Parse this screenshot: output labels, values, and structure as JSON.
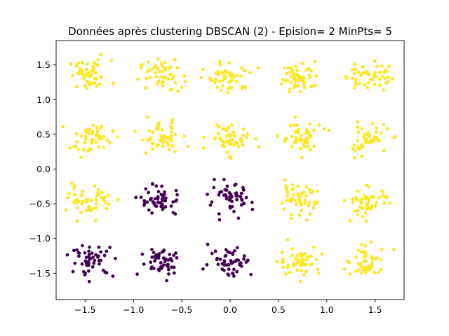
{
  "chart_data": {
    "type": "scatter",
    "title": "Données après clustering DBSCAN (2) - Epislon= 2 MinPts= 5",
    "xlabel": "",
    "ylabel": "",
    "xlim": [
      -1.8,
      1.8
    ],
    "ylim": [
      -1.88,
      1.85
    ],
    "grid": false,
    "x_ticks": [
      {
        "value": -1.5,
        "label": "−1.5"
      },
      {
        "value": -1.0,
        "label": "−1.0"
      },
      {
        "value": -0.5,
        "label": "−0.5"
      },
      {
        "value": 0.0,
        "label": "0.0"
      },
      {
        "value": 0.5,
        "label": "0.5"
      },
      {
        "value": 1.0,
        "label": "1.0"
      },
      {
        "value": 1.5,
        "label": "1.5"
      }
    ],
    "y_ticks": [
      {
        "value": -1.5,
        "label": "−1.5"
      },
      {
        "value": -1.0,
        "label": "−1.0"
      },
      {
        "value": -0.5,
        "label": "−0.5"
      },
      {
        "value": 0.0,
        "label": "0.0"
      },
      {
        "value": 0.5,
        "label": "0.5"
      },
      {
        "value": 1.0,
        "label": "1.0"
      },
      {
        "value": 1.5,
        "label": "1.5"
      }
    ],
    "colors": {
      "cluster_0": "#440154",
      "cluster_1": "#fde725"
    },
    "clusters": [
      {
        "cx": -1.45,
        "cy": 1.35,
        "cluster": 1
      },
      {
        "cx": -0.72,
        "cy": 1.35,
        "cluster": 1
      },
      {
        "cx": 0.0,
        "cy": 1.33,
        "cluster": 1
      },
      {
        "cx": 0.72,
        "cy": 1.33,
        "cluster": 1
      },
      {
        "cx": 1.42,
        "cy": 1.35,
        "cluster": 1
      },
      {
        "cx": -1.43,
        "cy": 0.43,
        "cluster": 1
      },
      {
        "cx": -0.72,
        "cy": 0.45,
        "cluster": 1
      },
      {
        "cx": 0.0,
        "cy": 0.45,
        "cluster": 1
      },
      {
        "cx": 0.72,
        "cy": 0.45,
        "cluster": 1
      },
      {
        "cx": 1.42,
        "cy": 0.43,
        "cluster": 1
      },
      {
        "cx": -1.45,
        "cy": -0.45,
        "cluster": 1
      },
      {
        "cx": -0.72,
        "cy": -0.45,
        "cluster": 0
      },
      {
        "cx": 0.0,
        "cy": -0.45,
        "cluster": 0
      },
      {
        "cx": 0.68,
        "cy": -0.45,
        "cluster": 1
      },
      {
        "cx": 1.42,
        "cy": -0.48,
        "cluster": 1
      },
      {
        "cx": -1.42,
        "cy": -1.32,
        "cluster": 0
      },
      {
        "cx": -0.7,
        "cy": -1.32,
        "cluster": 0
      },
      {
        "cx": 0.0,
        "cy": -1.32,
        "cluster": 0
      },
      {
        "cx": 0.72,
        "cy": -1.32,
        "cluster": 1
      },
      {
        "cx": 1.42,
        "cy": -1.35,
        "cluster": 1
      }
    ],
    "points_per_cluster": 50,
    "cluster_spread": 0.11
  }
}
